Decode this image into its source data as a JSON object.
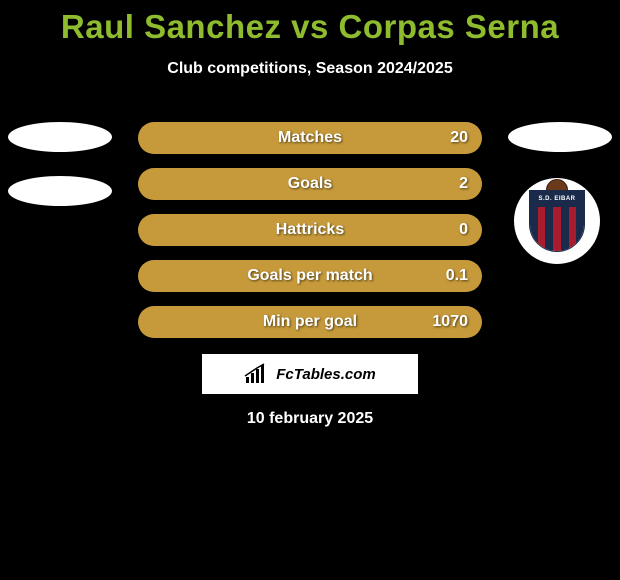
{
  "title_color": "#8fbc2e",
  "title_parts": {
    "left": "Raul Sanchez",
    "vs": " vs ",
    "right": "Corpas Serna"
  },
  "subtitle": "Club competitions, Season 2024/2025",
  "bar_color": "#c69a3a",
  "bars": [
    {
      "label": "Matches",
      "left": "",
      "right": "20"
    },
    {
      "label": "Goals",
      "left": "",
      "right": "2"
    },
    {
      "label": "Hattricks",
      "left": "",
      "right": "0"
    },
    {
      "label": "Goals per match",
      "left": "",
      "right": "0.1"
    },
    {
      "label": "Min per goal",
      "left": "",
      "right": "1070"
    }
  ],
  "logo_text": "FcTables.com",
  "date": "10 february 2025",
  "club_badge_text": "S.D. EIBAR"
}
